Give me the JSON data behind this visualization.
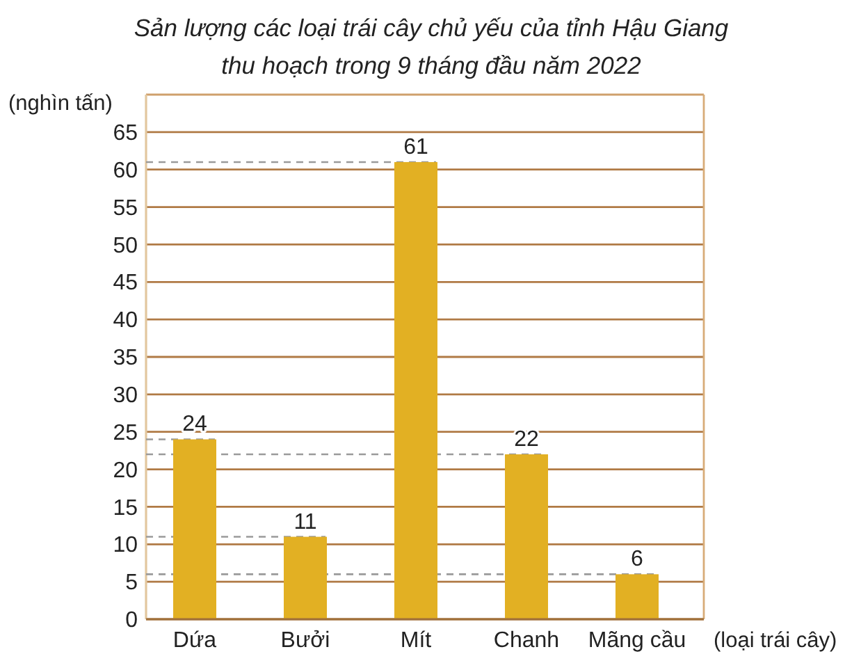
{
  "chart_data": {
    "type": "bar",
    "title": "Sản lượng các loại trái cây chủ yếu của tỉnh Hậu Giang\nthu hoạch trong 9 tháng đầu năm 2022",
    "xlabel": "(loại trái cây)",
    "ylabel": "(nghìn tấn)",
    "categories": [
      "Dứa",
      "Bưởi",
      "Mít",
      "Chanh",
      "Mãng cầu"
    ],
    "values": [
      24,
      11,
      61,
      22,
      6
    ],
    "color": "#e2b023",
    "ylim": [
      0,
      70
    ],
    "yticks": [
      0,
      5,
      10,
      15,
      20,
      25,
      30,
      35,
      40,
      45,
      50,
      55,
      60,
      65
    ],
    "grid": "y",
    "data_labels": true,
    "ref_lines": [
      {
        "axis": "y",
        "value": 24,
        "color": "#9a9a9a",
        "line_style": "dashed"
      },
      {
        "axis": "y",
        "value": 11,
        "color": "#9a9a9a",
        "line_style": "dashed"
      },
      {
        "axis": "y",
        "value": 61,
        "color": "#9a9a9a",
        "line_style": "dashed"
      },
      {
        "axis": "y",
        "value": 22,
        "color": "#9a9a9a",
        "line_style": "dashed"
      },
      {
        "axis": "y",
        "value": 6,
        "color": "#9a9a9a",
        "line_style": "dashed"
      }
    ]
  }
}
